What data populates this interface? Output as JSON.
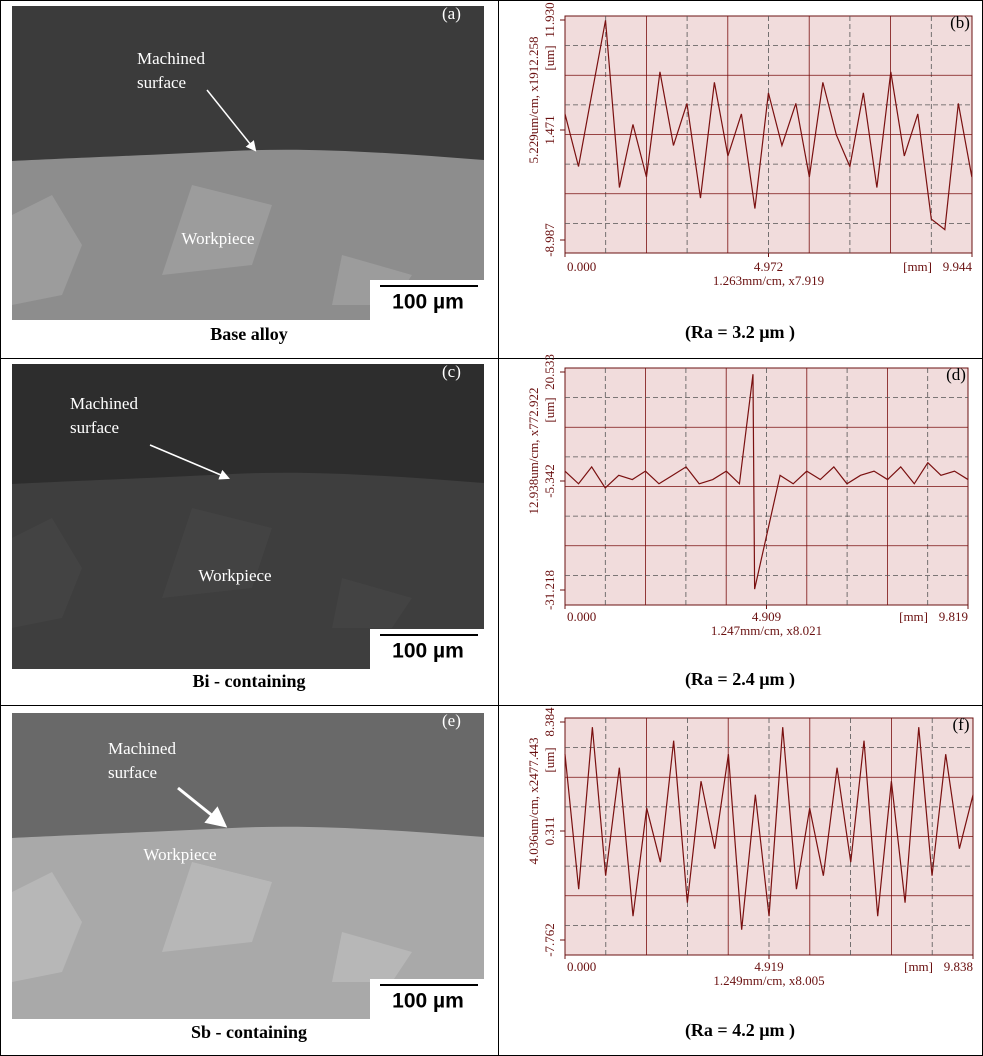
{
  "rows": [
    {
      "sem": {
        "panel": "(a)",
        "annotation": [
          "Machined",
          "surface"
        ],
        "region": "Workpiece",
        "scale_bar": "100 µm"
      },
      "caption": "Base alloy",
      "profile": {
        "type": "line",
        "panel": "(b)",
        "y_axis_label": "5.229um/cm, x1912.258",
        "y_unit": "[um]",
        "x_axis_label": "1.263mm/cm, x7.919",
        "x_unit": "[mm]",
        "color": "#7a1010",
        "ylim": [
          -8.987,
          11.93
        ],
        "yticks": [
          {
            "value": 11.93,
            "label": "11.930"
          },
          1.471,
          -8.987
        ],
        "xlim": [
          0,
          9.944
        ],
        "xticks": [
          {
            "value": 0,
            "label": "0.000"
          },
          4.972,
          9.944
        ],
        "x": [
          0,
          0.33,
          0.66,
          0.99,
          1.33,
          1.66,
          1.99,
          2.32,
          2.65,
          2.98,
          3.31,
          3.65,
          3.98,
          4.31,
          4.64,
          4.97,
          5.3,
          5.64,
          5.97,
          6.3,
          6.63,
          6.96,
          7.29,
          7.62,
          7.96,
          8.29,
          8.62,
          8.95,
          9.28,
          9.61,
          9.94
        ],
        "values": [
          3,
          -2,
          5,
          11.9,
          -4,
          2,
          -3,
          7,
          0,
          4,
          -5,
          6,
          -1,
          3,
          -6,
          5,
          0,
          4,
          -3,
          6,
          1,
          -2,
          5,
          -4,
          7,
          -1,
          3,
          -7,
          -8,
          4,
          -3
        ]
      },
      "ra": "(Ra = 3.2 µm )"
    },
    {
      "sem": {
        "panel": "(c)",
        "annotation": [
          "Machined",
          "surface"
        ],
        "region": "Workpiece",
        "scale_bar": "100 µm"
      },
      "caption": "Bi - containing",
      "profile": {
        "type": "line",
        "panel": "(d)",
        "y_axis_label": "12.938um/cm, x772.922",
        "y_unit": "[um]",
        "x_axis_label": "1.247mm/cm, x8.021",
        "x_unit": "[mm]",
        "color": "#7a1010",
        "ylim": [
          -31.218,
          20.533
        ],
        "yticks": [
          20.533,
          -5.342,
          -31.218
        ],
        "xlim": [
          0,
          9.819
        ],
        "xticks": [
          {
            "value": 0,
            "label": "0.000"
          },
          4.909,
          9.819
        ],
        "x": [
          0,
          0.33,
          0.65,
          0.98,
          1.31,
          1.64,
          1.96,
          2.29,
          2.62,
          2.95,
          3.27,
          3.6,
          3.93,
          4.25,
          4.58,
          4.62,
          5.24,
          5.56,
          5.89,
          6.22,
          6.55,
          6.87,
          7.2,
          7.53,
          7.86,
          8.18,
          8.51,
          8.84,
          9.16,
          9.49,
          9.82
        ],
        "values": [
          -3,
          -6,
          -2,
          -7,
          -4,
          -5,
          -3,
          -6,
          -4,
          -2,
          -6,
          -5,
          -3,
          -6,
          20,
          -31,
          -4,
          -6,
          -3,
          -5,
          -2,
          -6,
          -4,
          -3,
          -5,
          -2,
          -6,
          -1,
          -4,
          -3,
          -5
        ]
      },
      "ra": "(Ra = 2.4 µm )"
    },
    {
      "sem": {
        "panel": "(e)",
        "annotation": [
          "Machined",
          "surface"
        ],
        "region": "Workpiece",
        "scale_bar": "100 µm"
      },
      "caption": "Sb - containing",
      "profile": {
        "type": "line",
        "panel": "(f)",
        "y_axis_label": "4.036um/cm, x2477.443",
        "y_unit": "[um]",
        "x_axis_label": "1.249mm/cm, x8.005",
        "x_unit": "[mm]",
        "color": "#7a1010",
        "ylim": [
          -7.762,
          8.384
        ],
        "yticks": [
          8.384,
          0.311,
          -7.762
        ],
        "xlim": [
          0,
          9.838
        ],
        "xticks": [
          {
            "value": 0,
            "label": "0.000"
          },
          4.919,
          9.838
        ],
        "x": [
          0,
          0.33,
          0.66,
          0.98,
          1.31,
          1.64,
          1.97,
          2.3,
          2.62,
          2.95,
          3.28,
          3.61,
          3.94,
          4.26,
          4.59,
          4.92,
          5.25,
          5.58,
          5.9,
          6.23,
          6.56,
          6.89,
          7.21,
          7.54,
          7.87,
          8.2,
          8.53,
          8.85,
          9.18,
          9.51,
          9.84
        ],
        "values": [
          6,
          -4,
          8,
          -3,
          5,
          -6,
          2,
          -2,
          7,
          -5,
          4,
          -1,
          6,
          -7,
          3,
          -6,
          8,
          -4,
          2,
          -3,
          5,
          -2,
          7,
          -6,
          4,
          -5,
          8,
          -3,
          6,
          -1,
          3
        ]
      },
      "ra": "(Ra = 4.2 µm )"
    }
  ]
}
